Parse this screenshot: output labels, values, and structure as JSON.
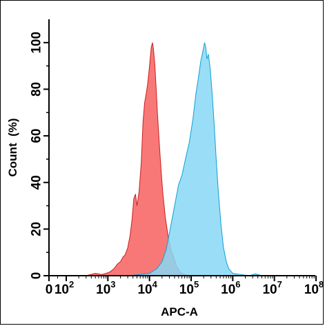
{
  "chart_data": {
    "type": "area",
    "title": "",
    "xlabel": "APC-A",
    "ylabel": "Count  (%)",
    "xscale": "biexponential",
    "xlim": [
      0,
      100000000
    ],
    "ylim": [
      0,
      110
    ],
    "y_ticks": [
      0,
      20,
      40,
      60,
      80,
      100
    ],
    "x_ticks": [
      {
        "value": 0,
        "base": "0",
        "exp": ""
      },
      {
        "value": 100,
        "base": "10",
        "exp": "2"
      },
      {
        "value": 1000,
        "base": "10",
        "exp": "3"
      },
      {
        "value": 10000,
        "base": "10",
        "exp": "4"
      },
      {
        "value": 100000,
        "base": "10",
        "exp": "5"
      },
      {
        "value": 1000000,
        "base": "10",
        "exp": "6"
      },
      {
        "value": 10000000,
        "base": "10",
        "exp": "7"
      },
      {
        "value": 100000000,
        "base": "10",
        "exp": "8"
      }
    ],
    "grid": false,
    "legend": "none",
    "series": [
      {
        "color": "#f87171",
        "stroke": "#c81e1e",
        "points": [
          [
            100,
            0
          ],
          [
            300,
            0
          ],
          [
            500,
            1
          ],
          [
            700,
            0.5
          ],
          [
            900,
            1
          ],
          [
            1100,
            1.5
          ],
          [
            1400,
            3
          ],
          [
            1700,
            5
          ],
          [
            2000,
            6
          ],
          [
            2300,
            8
          ],
          [
            2600,
            9
          ],
          [
            3000,
            12
          ],
          [
            3400,
            17
          ],
          [
            3800,
            24
          ],
          [
            4200,
            33
          ],
          [
            4600,
            35
          ],
          [
            5000,
            30
          ],
          [
            5600,
            36
          ],
          [
            6300,
            48
          ],
          [
            7000,
            66
          ],
          [
            7600,
            74
          ],
          [
            8300,
            78
          ],
          [
            9000,
            82
          ],
          [
            10000,
            90
          ],
          [
            11000,
            98
          ],
          [
            11800,
            100
          ],
          [
            12500,
            97
          ],
          [
            13500,
            90
          ],
          [
            14500,
            80
          ],
          [
            15500,
            70
          ],
          [
            17000,
            58
          ],
          [
            19000,
            45
          ],
          [
            21000,
            35
          ],
          [
            24000,
            25
          ],
          [
            28000,
            17
          ],
          [
            33000,
            11
          ],
          [
            38000,
            8
          ],
          [
            45000,
            4
          ],
          [
            55000,
            1.5
          ],
          [
            70000,
            0.5
          ],
          [
            90000,
            0
          ]
        ]
      },
      {
        "color": "#87d8f5",
        "stroke": "#0e9fd4",
        "points": [
          [
            3000,
            0
          ],
          [
            6000,
            0.5
          ],
          [
            10000,
            1
          ],
          [
            15000,
            3
          ],
          [
            20000,
            6
          ],
          [
            25000,
            11
          ],
          [
            30000,
            18
          ],
          [
            40000,
            30
          ],
          [
            50000,
            39
          ],
          [
            60000,
            43
          ],
          [
            75000,
            51
          ],
          [
            90000,
            57
          ],
          [
            110000,
            67
          ],
          [
            130000,
            78
          ],
          [
            150000,
            85
          ],
          [
            170000,
            92
          ],
          [
            190000,
            96
          ],
          [
            210000,
            100
          ],
          [
            225000,
            98
          ],
          [
            240000,
            93
          ],
          [
            260000,
            95
          ],
          [
            290000,
            88
          ],
          [
            320000,
            78
          ],
          [
            360000,
            64
          ],
          [
            400000,
            50
          ],
          [
            450000,
            36
          ],
          [
            520000,
            22
          ],
          [
            600000,
            12
          ],
          [
            700000,
            6
          ],
          [
            800000,
            3
          ],
          [
            1000000,
            1
          ],
          [
            1500000,
            0.5
          ],
          [
            2500000,
            0
          ],
          [
            3500000,
            0.8
          ],
          [
            5000000,
            0
          ]
        ]
      }
    ]
  }
}
